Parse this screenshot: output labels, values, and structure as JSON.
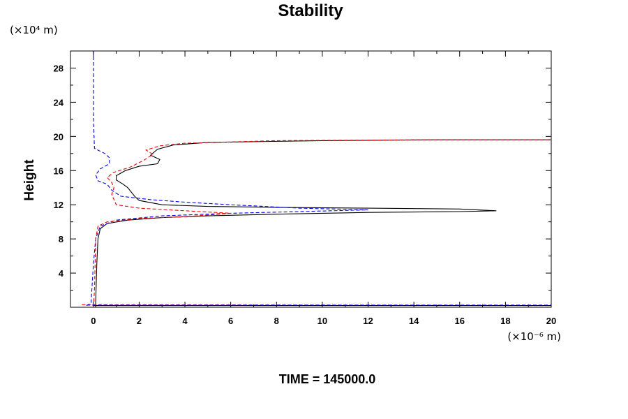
{
  "chart_data": {
    "type": "line",
    "title": "Stability",
    "ylabel": "Height",
    "xlabel": "",
    "y_unit": "(×10⁴ m)",
    "x_unit": "(×10⁻⁶ m)",
    "xlim": [
      -1,
      20
    ],
    "ylim": [
      0,
      30
    ],
    "xticks": [
      0,
      2,
      4,
      6,
      8,
      10,
      12,
      14,
      16,
      18,
      20
    ],
    "yticks": [
      4,
      8,
      12,
      16,
      20,
      24,
      28
    ],
    "grid": false,
    "legend": "none",
    "series": [
      {
        "color": "#000000",
        "dash": "solid",
        "points": [
          [
            0.1,
            0.0
          ],
          [
            0.1,
            0.5
          ],
          [
            0.15,
            5
          ],
          [
            0.2,
            8
          ],
          [
            0.3,
            9.2
          ],
          [
            0.6,
            9.8
          ],
          [
            1.5,
            10.2
          ],
          [
            3,
            10.5
          ],
          [
            5,
            10.7
          ],
          [
            8,
            10.9
          ],
          [
            12,
            11.1
          ],
          [
            16,
            11.2
          ],
          [
            17.6,
            11.3
          ],
          [
            16,
            11.5
          ],
          [
            12,
            11.6
          ],
          [
            8,
            11.7
          ],
          [
            5,
            11.8
          ],
          [
            3,
            12
          ],
          [
            2,
            12.5
          ],
          [
            1.8,
            13
          ],
          [
            1.5,
            14
          ],
          [
            1.3,
            14.4
          ],
          [
            1.0,
            14.9
          ],
          [
            1.0,
            15.4
          ],
          [
            1.4,
            16.0
          ],
          [
            2.0,
            16.5
          ],
          [
            2.8,
            16.8
          ],
          [
            2.9,
            17.3
          ],
          [
            2.5,
            17.8
          ],
          [
            2.8,
            18.5
          ],
          [
            3.5,
            19.0
          ],
          [
            5,
            19.3
          ],
          [
            10,
            19.5
          ],
          [
            15,
            19.6
          ],
          [
            20,
            19.6
          ]
        ]
      },
      {
        "color": "#0000ff",
        "dash": "dashed",
        "points": [
          [
            0.0,
            30
          ],
          [
            0.0,
            22
          ],
          [
            0.05,
            18.6
          ],
          [
            0.5,
            18
          ],
          [
            0.7,
            17.5
          ],
          [
            0.7,
            16.8
          ],
          [
            0.3,
            16.2
          ],
          [
            0.1,
            15.5
          ],
          [
            0.2,
            14.8
          ],
          [
            0.6,
            14.4
          ],
          [
            0.8,
            13.7
          ],
          [
            1.2,
            13.0
          ],
          [
            2.5,
            12.6
          ],
          [
            4,
            12.3
          ],
          [
            6,
            12.0
          ],
          [
            9,
            11.6
          ],
          [
            12,
            11.4
          ],
          [
            9,
            11.2
          ],
          [
            6,
            11.0
          ],
          [
            3,
            10.7
          ],
          [
            1.0,
            10.2
          ],
          [
            0.3,
            9.5
          ],
          [
            0.1,
            8
          ],
          [
            0.0,
            5
          ],
          [
            -0.1,
            0.5
          ],
          [
            -0.3,
            0.2
          ]
        ]
      },
      {
        "color": "#ff0000",
        "dash": "dashed",
        "points": [
          [
            0.0,
            0.0
          ],
          [
            0.05,
            2
          ],
          [
            0.1,
            8
          ],
          [
            0.2,
            9.5
          ],
          [
            0.6,
            10.0
          ],
          [
            2,
            10.4
          ],
          [
            4,
            10.6
          ],
          [
            6,
            11.0
          ],
          [
            4,
            11.3
          ],
          [
            2,
            11.6
          ],
          [
            1.0,
            12.0
          ],
          [
            0.9,
            12.6
          ],
          [
            0.8,
            13.2
          ],
          [
            0.9,
            14
          ],
          [
            0.8,
            14.6
          ],
          [
            0.6,
            15.2
          ],
          [
            0.9,
            15.8
          ],
          [
            1.6,
            16.4
          ],
          [
            2.2,
            17.2
          ],
          [
            2.6,
            17.9
          ],
          [
            2.3,
            18.4
          ],
          [
            2.9,
            18.9
          ],
          [
            4,
            19.2
          ],
          [
            8,
            19.5
          ],
          [
            14,
            19.6
          ],
          [
            20,
            19.6
          ]
        ]
      },
      {
        "color": "#ff0000",
        "dash": "dashed",
        "points": [
          [
            -0.5,
            0.3
          ],
          [
            20,
            0.2
          ]
        ]
      },
      {
        "color": "#0000ff",
        "dash": "dashed",
        "points": [
          [
            -0.3,
            0.25
          ],
          [
            20,
            0.25
          ]
        ]
      },
      {
        "color": "#000000",
        "dash": "solid",
        "points": [
          [
            0.0,
            0.2
          ],
          [
            20,
            0.2
          ]
        ]
      }
    ]
  },
  "footer": {
    "time_label": "TIME = 145000.0"
  }
}
